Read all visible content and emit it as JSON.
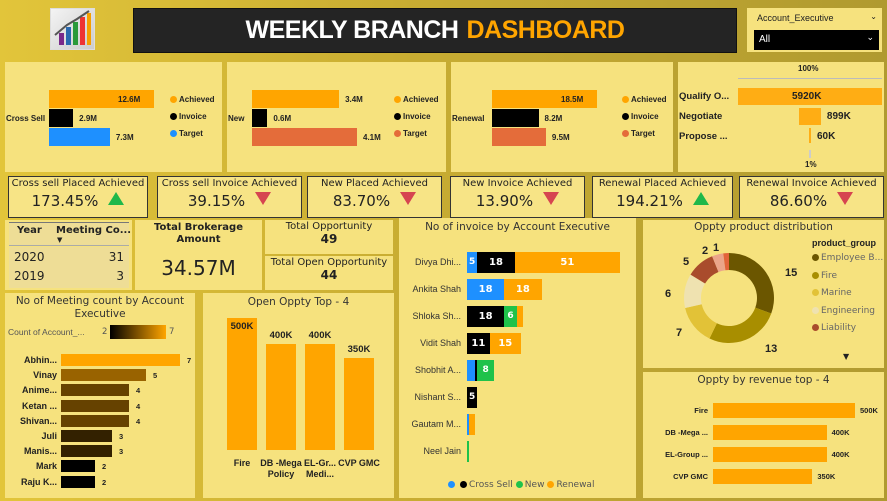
{
  "header": {
    "title_white": "WEEKLY BRANCH",
    "title_orange": "DASHBOARD",
    "logo_icon": "bar-chart-growth-icon"
  },
  "slicer": {
    "label": "Account_Executive",
    "value": "All"
  },
  "kpis": [
    {
      "label": "Cross sell Placed Achieved",
      "value": "173.45%",
      "trend": "up"
    },
    {
      "label": "Cross sell Invoice Achieved",
      "value": "39.15%",
      "trend": "down"
    },
    {
      "label": "New Placed Achieved",
      "value": "83.70%",
      "trend": "down"
    },
    {
      "label": "New Invoice Achieved",
      "value": "13.90%",
      "trend": "down"
    },
    {
      "label": "Renewal Placed Achieved",
      "value": "194.21%",
      "trend": "up"
    },
    {
      "label": "Renewal Invoice Achieved",
      "value": "86.60%",
      "trend": "down"
    }
  ],
  "meeting_table": {
    "headers": [
      "Year",
      "Meeting Co..."
    ],
    "rows": [
      [
        "2020",
        "31"
      ],
      [
        "2019",
        "3"
      ]
    ]
  },
  "cards": {
    "brokerage_label": "Total Brokerage Amount",
    "brokerage_value": "34.57M",
    "total_opp_label": "Total Opportunity",
    "total_opp_value": "49",
    "open_opp_label": "Total Open Opportunity",
    "open_opp_value": "44"
  },
  "chart_data": [
    {
      "type": "bar",
      "category": "Cross Sell",
      "series": [
        {
          "name": "Achieved",
          "value": 12.6,
          "label": "12.6M",
          "color": "#ffa500"
        },
        {
          "name": "Invoice",
          "value": 2.9,
          "label": "2.9M",
          "color": "#000000"
        },
        {
          "name": "Target",
          "value": 7.3,
          "label": "7.3M",
          "color": "#1e90ff"
        }
      ]
    },
    {
      "type": "bar",
      "category": "New",
      "series": [
        {
          "name": "Achieved",
          "value": 3.4,
          "label": "3.4M",
          "color": "#ffa500"
        },
        {
          "name": "Invoice",
          "value": 0.6,
          "label": "0.6M",
          "color": "#000000"
        },
        {
          "name": "Target",
          "value": 4.1,
          "label": "4.1M",
          "color": "#e46c3a"
        }
      ]
    },
    {
      "type": "bar",
      "category": "Renewal",
      "series": [
        {
          "name": "Achieved",
          "value": 18.5,
          "label": "18.5M",
          "color": "#ffa500"
        },
        {
          "name": "Invoice",
          "value": 8.2,
          "label": "8.2M",
          "color": "#000000"
        },
        {
          "name": "Target",
          "value": 9.5,
          "label": "9.5M",
          "color": "#e46c3a"
        }
      ]
    },
    {
      "type": "funnel",
      "top_label": "100%",
      "bottom_label": "1%",
      "categories": [
        "Qualify O...",
        "Negotiate",
        "Propose ..."
      ],
      "values": [
        5920,
        899,
        60
      ],
      "labels": [
        "5920K",
        "899K",
        "60K"
      ],
      "color": "#ffad14"
    },
    {
      "type": "bar",
      "stacked": true,
      "title": "No of invoice by Account Executive",
      "categories": [
        "Divya Dhi...",
        "Ankita Shah",
        "Shloka Sh...",
        "Vidit Shah",
        "Shobhit A...",
        "Nishant S...",
        "Gautam M...",
        "Neel Jain"
      ],
      "series": [
        {
          "name": "",
          "color": "#1e90ff",
          "values": [
            5,
            18,
            0,
            0,
            4,
            0,
            1,
            0
          ]
        },
        {
          "name": "Cross Sell",
          "color": "#000000",
          "values": [
            18,
            0,
            18,
            11,
            1,
            5,
            0,
            0
          ]
        },
        {
          "name": "New",
          "color": "#1fc24a",
          "values": [
            0,
            0,
            6,
            0,
            8,
            0,
            0,
            1
          ]
        },
        {
          "name": "Renewal",
          "color": "#ffa500",
          "values": [
            51,
            18,
            3,
            15,
            0,
            0,
            3,
            0
          ]
        }
      ]
    },
    {
      "type": "pie",
      "donut": true,
      "title": "Oppty product distribution",
      "legend_title": "product_group",
      "slices": [
        {
          "name": "Employee B...",
          "value": 15,
          "color": "#6b5600"
        },
        {
          "name": "Fire",
          "value": 13,
          "color": "#a88e00"
        },
        {
          "name": "Marine",
          "value": 7,
          "color": "#e2c237"
        },
        {
          "name": "Engineering",
          "value": 6,
          "color": "#efe2b0"
        },
        {
          "name": "Liability",
          "value": 5,
          "color": "#a94c2c"
        },
        {
          "name": "",
          "value": 2,
          "color": "#eba58a"
        },
        {
          "name": "",
          "value": 1,
          "color": "#e2643a"
        }
      ]
    },
    {
      "type": "bar",
      "title": "No of Meeting count by Account Executive",
      "legend_label": "Count of Account_...",
      "color_min": "#000000",
      "color_max": "#ffa500",
      "range": [
        2,
        7
      ],
      "categories": [
        "Abhin...",
        "Vinay",
        "Anime...",
        "Ketan ...",
        "Shivan...",
        "Juli",
        "Manis...",
        "Mark",
        "Raju K..."
      ],
      "values": [
        7,
        5,
        4,
        4,
        4,
        3,
        3,
        2,
        2
      ]
    },
    {
      "type": "bar",
      "title": "Open Oppty Top - 4",
      "color": "#ffa500",
      "categories": [
        "Fire",
        "DB -Mega Policy",
        "EL-Gr... Medi...",
        "CVP GMC"
      ],
      "values": [
        500,
        400,
        400,
        350
      ],
      "labels": [
        "500K",
        "400K",
        "400K",
        "350K"
      ]
    },
    {
      "type": "bar",
      "title": "Oppty by revenue top - 4",
      "color": "#ffa500",
      "categories": [
        "Fire",
        "DB -Mega ...",
        "EL-Group ...",
        "CVP GMC"
      ],
      "values": [
        500,
        400,
        400,
        350
      ],
      "labels": [
        "500K",
        "400K",
        "400K",
        "350K"
      ]
    }
  ]
}
